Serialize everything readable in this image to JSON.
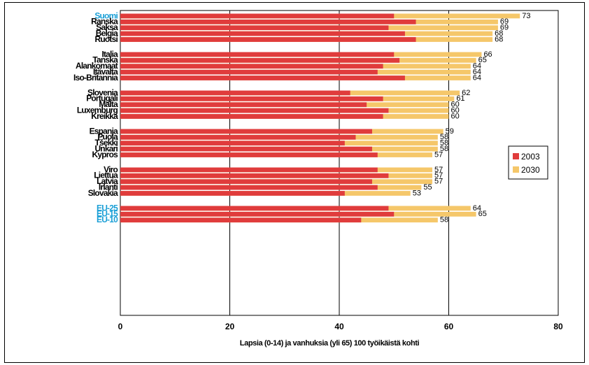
{
  "chart_data": {
    "type": "bar",
    "orientation": "horizontal",
    "title": "",
    "xlabel": "Lapsia (0-14) ja vanhuksia (yli 65) 100 työikäistä kohti",
    "ylabel": "",
    "xlim": [
      0,
      80
    ],
    "xticks": [
      0,
      20,
      40,
      60,
      80
    ],
    "grid": true,
    "legend_position": "right",
    "colors": {
      "2003": "#e03c3c",
      "2030": "#f5c76a",
      "highlight_label": "#1a9fd6"
    },
    "groups": [
      [
        "Suomi",
        "Ranska",
        "Saksa",
        "Belgia",
        "Ruotsi"
      ],
      [
        "Italia",
        "Tanska",
        "Alankomaat",
        "Itävalta",
        "Iso-Britannia"
      ],
      [
        "Slovenia",
        "Portugali",
        "Malta",
        "Luxemburg",
        "Kreikka"
      ],
      [
        "Espanja",
        "Puola",
        "Tšekki",
        "Unkari",
        "Kypros"
      ],
      [
        "Viro",
        "Liettua",
        "Latvia",
        "Irlanti",
        "Slovakia"
      ],
      [
        "EU-25",
        "EU-15",
        "EU-10"
      ]
    ],
    "highlighted": [
      "Suomi",
      "EU-25",
      "EU-15",
      "EU-10"
    ],
    "series": [
      {
        "name": "2003",
        "values": [
          50,
          54,
          49,
          52,
          54,
          50,
          51,
          48,
          47,
          52,
          42,
          48,
          45,
          49,
          48,
          46,
          43,
          41,
          46,
          47,
          47,
          49,
          46,
          47,
          41,
          49,
          50,
          44
        ]
      },
      {
        "name": "2030",
        "values": [
          73,
          69,
          69,
          68,
          68,
          66,
          65,
          64,
          64,
          64,
          62,
          61,
          60,
          60,
          60,
          59,
          58,
          58,
          58,
          57,
          57,
          57,
          57,
          55,
          53,
          64,
          65,
          58
        ]
      }
    ],
    "data_labels": [
      "73",
      "69",
      "69",
      "68",
      "68",
      "66",
      "65",
      "64",
      "64",
      "64",
      "62",
      "61",
      "60",
      "60",
      "60",
      "59",
      "58",
      "58",
      "58",
      "57",
      "57",
      "57",
      "57",
      "55",
      "53",
      "64",
      "65",
      "58"
    ]
  }
}
